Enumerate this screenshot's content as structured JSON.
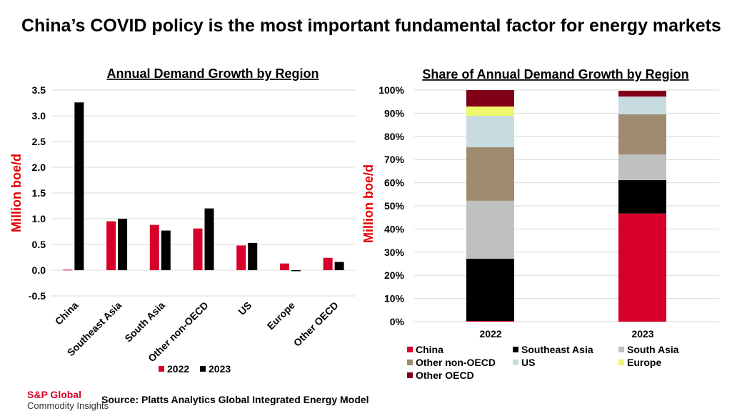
{
  "title": "China’s COVID policy is the most important fundamental factor for energy markets",
  "source": "Source: Platts Analytics Global Integrated Energy Model",
  "logo": {
    "line1": "S&P Global",
    "line2": "Commodity Insights"
  },
  "chart_data": [
    {
      "type": "bar",
      "title": "Annual Demand Growth by Region",
      "ylabel": "Million boe/d",
      "xlabel": "",
      "categories": [
        "China",
        "Southeast Asia",
        "South Asia",
        "Other non-OECD",
        "US",
        "Europe",
        "Other OECD"
      ],
      "ylim": [
        -0.5,
        3.5
      ],
      "yticks": [
        "-0.5",
        "0.0",
        "0.5",
        "1.0",
        "1.5",
        "2.0",
        "2.5",
        "3.0",
        "3.5"
      ],
      "grid": true,
      "legend": "bottom",
      "series": [
        {
          "name": "2022",
          "color": "#d7002a",
          "values": [
            0.01,
            0.95,
            0.88,
            0.81,
            0.48,
            0.13,
            0.24
          ]
        },
        {
          "name": "2023",
          "color": "#000000",
          "values": [
            3.26,
            1.0,
            0.77,
            1.2,
            0.53,
            -0.02,
            0.16
          ]
        }
      ]
    },
    {
      "type": "bar",
      "stacked": true,
      "title": "Share of Annual Demand Growth by Region",
      "ylabel": "Million boe/d",
      "xlabel": "",
      "categories": [
        "2022",
        "2023"
      ],
      "ylim": [
        0,
        100
      ],
      "yticks": [
        "0%",
        "10%",
        "20%",
        "30%",
        "40%",
        "50%",
        "60%",
        "70%",
        "80%",
        "90%",
        "100%"
      ],
      "grid": true,
      "legend": "bottom",
      "series": [
        {
          "name": "China",
          "color": "#d7002a",
          "values": [
            0.3,
            46.7
          ]
        },
        {
          "name": "Southeast Asia",
          "color": "#000000",
          "values": [
            26.9,
            14.4
          ]
        },
        {
          "name": "South Asia",
          "color": "#c0c0c0",
          "values": [
            25.0,
            11.1
          ]
        },
        {
          "name": "Other non-OECD",
          "color": "#9e8b70",
          "values": [
            23.1,
            17.3
          ]
        },
        {
          "name": "US",
          "color": "#c8dce0",
          "values": [
            13.6,
            7.7
          ]
        },
        {
          "name": "Europe",
          "color": "#eef76a",
          "values": [
            4.0,
            0
          ]
        },
        {
          "name": "Other OECD",
          "color": "#800018",
          "values": [
            7.1,
            2.5
          ]
        }
      ]
    }
  ]
}
